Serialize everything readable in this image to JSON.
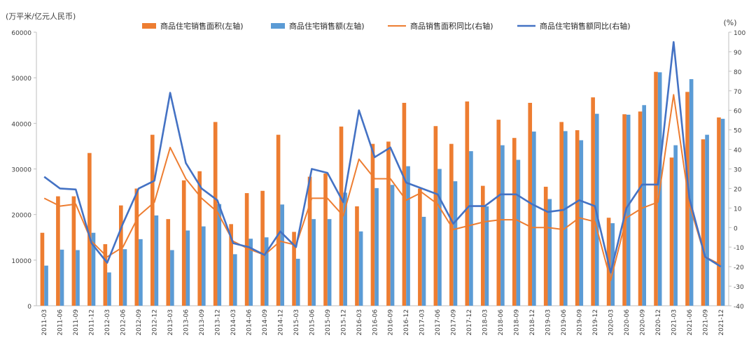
{
  "chart_data": {
    "type": "bar",
    "y_left_unit": "(万平米/亿元人民币)",
    "y_right_unit": "(%)",
    "ylim_left": [
      0,
      60000
    ],
    "ylim_right": [
      -40,
      100
    ],
    "grid": false,
    "legend_position": "top",
    "categories": [
      "2011-03",
      "2011-06",
      "2011-09",
      "2011-12",
      "2012-03",
      "2012-06",
      "2012-09",
      "2012-12",
      "2013-03",
      "2013-06",
      "2013-09",
      "2013-12",
      "2014-03",
      "2014-06",
      "2014-09",
      "2014-12",
      "2015-03",
      "2015-06",
      "2015-09",
      "2015-12",
      "2016-03",
      "2016-06",
      "2016-09",
      "2016-12",
      "2017-03",
      "2017-06",
      "2017-09",
      "2017-12",
      "2018-03",
      "2018-06",
      "2018-09",
      "2018-12",
      "2019-03",
      "2019-06",
      "2019-09",
      "2019-12",
      "2020-03",
      "2020-06",
      "2020-09",
      "2020-12",
      "2021-03",
      "2021-06",
      "2021-09",
      "2021-12"
    ],
    "left_ticks": [
      "0",
      "10000",
      "20000",
      "30000",
      "40000",
      "50000",
      "60000"
    ],
    "right_ticks": [
      "-40",
      "-30",
      "-20",
      "-10",
      "0",
      "10",
      "20",
      "30",
      "40",
      "50",
      "60",
      "70",
      "80",
      "90",
      "100"
    ],
    "series": [
      {
        "name": "商品住宅销售面积(左轴)",
        "axis": "left",
        "kind": "bar",
        "color": "#ED7D31",
        "values": [
          16000,
          24000,
          24000,
          33500,
          13500,
          22000,
          25700,
          37500,
          19000,
          27500,
          29500,
          40300,
          17900,
          24700,
          25200,
          37500,
          16200,
          28300,
          29000,
          39300,
          21800,
          35500,
          36000,
          44500,
          25700,
          39400,
          35500,
          44800,
          26300,
          40800,
          36800,
          44500,
          26100,
          40300,
          38500,
          45700,
          19300,
          42000,
          42600,
          51300,
          32500,
          46900,
          36500,
          41300
        ]
      },
      {
        "name": "商品住宅销售额(左轴)",
        "axis": "left",
        "kind": "bar",
        "color": "#5B9BD5",
        "values": [
          8800,
          12300,
          12200,
          16000,
          7300,
          12400,
          14600,
          19800,
          12200,
          16500,
          17400,
          22300,
          11300,
          14700,
          15000,
          22200,
          10300,
          19000,
          19000,
          24800,
          16300,
          25800,
          26500,
          30600,
          19500,
          30000,
          27300,
          33900,
          21800,
          35200,
          32000,
          38200,
          23400,
          38300,
          36300,
          42100,
          18100,
          41900,
          44000,
          51200,
          35200,
          49700,
          37500,
          41000
        ]
      },
      {
        "name": "商品销售面积同比(右轴)",
        "axis": "right",
        "kind": "line",
        "color": "#ED7D31",
        "values": [
          15,
          11,
          12,
          -7,
          -15,
          -10,
          6,
          13,
          41,
          25,
          15,
          8,
          -7,
          -11,
          -14,
          -7,
          -9,
          15,
          15,
          6,
          35,
          25,
          25,
          14,
          18,
          12,
          -1,
          1,
          3,
          4,
          4,
          0,
          0,
          -1,
          5,
          3,
          -27,
          5,
          10,
          13,
          68,
          12,
          -15,
          -19
        ]
      },
      {
        "name": "商品住宅销售额同比(右轴)",
        "axis": "right",
        "kind": "line",
        "color": "#4472C4",
        "values": [
          26,
          20,
          19.5,
          -8,
          -18,
          2,
          20,
          24,
          69,
          33,
          20,
          14,
          -8,
          -10,
          -14,
          -2,
          -10,
          30,
          28,
          13,
          60,
          36,
          41,
          23,
          20,
          17,
          2,
          11,
          11,
          17,
          17,
          12,
          8,
          9,
          14,
          11,
          -23,
          10,
          22,
          22,
          95,
          15,
          -15,
          -20
        ]
      }
    ]
  }
}
